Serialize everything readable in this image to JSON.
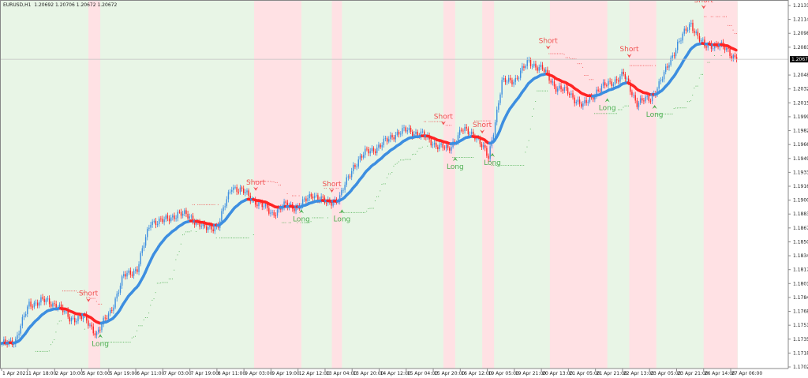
{
  "header": {
    "symbol": "EURUSD,H1",
    "open": "1.20692",
    "high": "1.20706",
    "low": "1.20672",
    "close": "1.20672"
  },
  "chart_data": {
    "type": "candlestick",
    "timeframe": "H1",
    "ylim": [
      1.1702,
      1.2131
    ],
    "y_ticks": [
      "1.21310",
      "1.21145",
      "1.20980",
      "1.20815",
      "1.20485",
      "1.20320",
      "1.20155",
      "1.19990",
      "1.19825",
      "1.19660",
      "1.19495",
      "1.19330",
      "1.19165",
      "1.19000",
      "1.18835",
      "1.18670",
      "1.18505",
      "1.18340",
      "1.18175",
      "1.18010",
      "1.17845",
      "1.17680",
      "1.17515",
      "1.17350",
      "1.17185",
      "1.17020"
    ],
    "x_ticks": [
      "1 Apr 2021",
      "1 Apr 18:00",
      "2 Apr 10:00",
      "5 Apr 03:00",
      "5 Apr 19:00",
      "6 Apr 11:00",
      "7 Apr 03:00",
      "7 Apr 19:00",
      "8 Apr 11:00",
      "9 Apr 03:00",
      "9 Apr 19:00",
      "12 Apr 12:00",
      "13 Apr 04:00",
      "13 Apr 20:00",
      "14 Apr 12:00",
      "15 Apr 04:00",
      "15 Apr 20:00",
      "16 Apr 12:00",
      "19 Apr 05:00",
      "19 Apr 21:00",
      "20 Apr 13:00",
      "21 Apr 05:00",
      "21 Apr 21:00",
      "22 Apr 13:00",
      "23 Apr 05:00",
      "23 Apr 21:00",
      "26 Apr 14:00",
      "27 Apr 06:00"
    ],
    "current_price": "1.20672",
    "closes_every_8_bars": [
      1.17279,
      1.17344,
      1.17766,
      1.17804,
      1.17766,
      1.17597,
      1.17607,
      1.17419,
      1.17672,
      1.18094,
      1.18188,
      1.18751,
      1.18751,
      1.18844,
      1.18797,
      1.18657,
      1.18704,
      1.19172,
      1.19079,
      1.18957,
      1.18844,
      1.18938,
      1.18919,
      1.19079,
      1.18957,
      1.19032,
      1.19407,
      1.19576,
      1.19641,
      1.19782,
      1.19829,
      1.19782,
      1.19669,
      1.19594,
      1.19829,
      1.19782,
      1.19501,
      1.20391,
      1.20438,
      1.20644,
      1.20551,
      1.20344,
      1.20269,
      1.2011,
      1.20297,
      1.20391,
      1.20485,
      1.20157,
      1.20204,
      1.20485,
      1.2086,
      1.21094,
      1.20813,
      1.2086,
      1.20719,
      1.20672
    ],
    "zones": [
      {
        "trend": "short",
        "from": "5 Apr 07:00",
        "to": "5 Apr 14:00"
      },
      {
        "trend": "short",
        "from": "9 Apr 09:00",
        "to": "12 Apr 14:00"
      },
      {
        "trend": "short",
        "from": "13 Apr 08:00",
        "to": "13 Apr 14:00"
      },
      {
        "trend": "short",
        "from": "16 Apr 02:00",
        "to": "16 Apr 09:00"
      },
      {
        "trend": "short",
        "from": "19 Apr 01:00",
        "to": "19 Apr 09:00"
      },
      {
        "trend": "short",
        "from": "20 Apr 18:00",
        "to": "22 Apr 04:00"
      },
      {
        "trend": "short",
        "from": "22 Apr 17:00",
        "to": "23 Apr 09:00"
      },
      {
        "trend": "short",
        "from": "26 Apr 14:00",
        "to": "27 Apr 10:00"
      }
    ],
    "signals": [
      {
        "label": "Short",
        "time": "5 Apr 07:00",
        "price": 1.178
      },
      {
        "label": "Long",
        "time": "5 Apr 14:00",
        "price": 1.174
      },
      {
        "label": "Short",
        "time": "9 Apr 10:00",
        "price": 1.1912
      },
      {
        "label": "Long",
        "time": "12 Apr 14:00",
        "price": 1.1888
      },
      {
        "label": "Short",
        "time": "13 Apr 08:00",
        "price": 1.191
      },
      {
        "label": "Long",
        "time": "13 Apr 14:00",
        "price": 1.1888
      },
      {
        "label": "Short",
        "time": "16 Apr 02:00",
        "price": 1.199
      },
      {
        "label": "Long",
        "time": "16 Apr 09:00",
        "price": 1.195
      },
      {
        "label": "Short",
        "time": "19 Apr 01:00",
        "price": 1.198
      },
      {
        "label": "Long",
        "time": "19 Apr 08:00",
        "price": 1.1955
      },
      {
        "label": "Short",
        "time": "20 Apr 17:00",
        "price": 1.208
      },
      {
        "label": "Long",
        "time": "22 Apr 04:00",
        "price": 1.202
      },
      {
        "label": "Short",
        "time": "22 Apr 17:00",
        "price": 1.207
      },
      {
        "label": "Long",
        "time": "23 Apr 08:00",
        "price": 1.2012
      },
      {
        "label": "Short",
        "time": "26 Apr 14:00",
        "price": 1.2128
      }
    ],
    "colors": {
      "bull": "#3d8ee0",
      "bear": "#ff2424",
      "long_zone": "#e8f5e6",
      "short_zone": "#ffe1e4",
      "long_text": "#4caf50",
      "short_text": "#f05050"
    }
  }
}
